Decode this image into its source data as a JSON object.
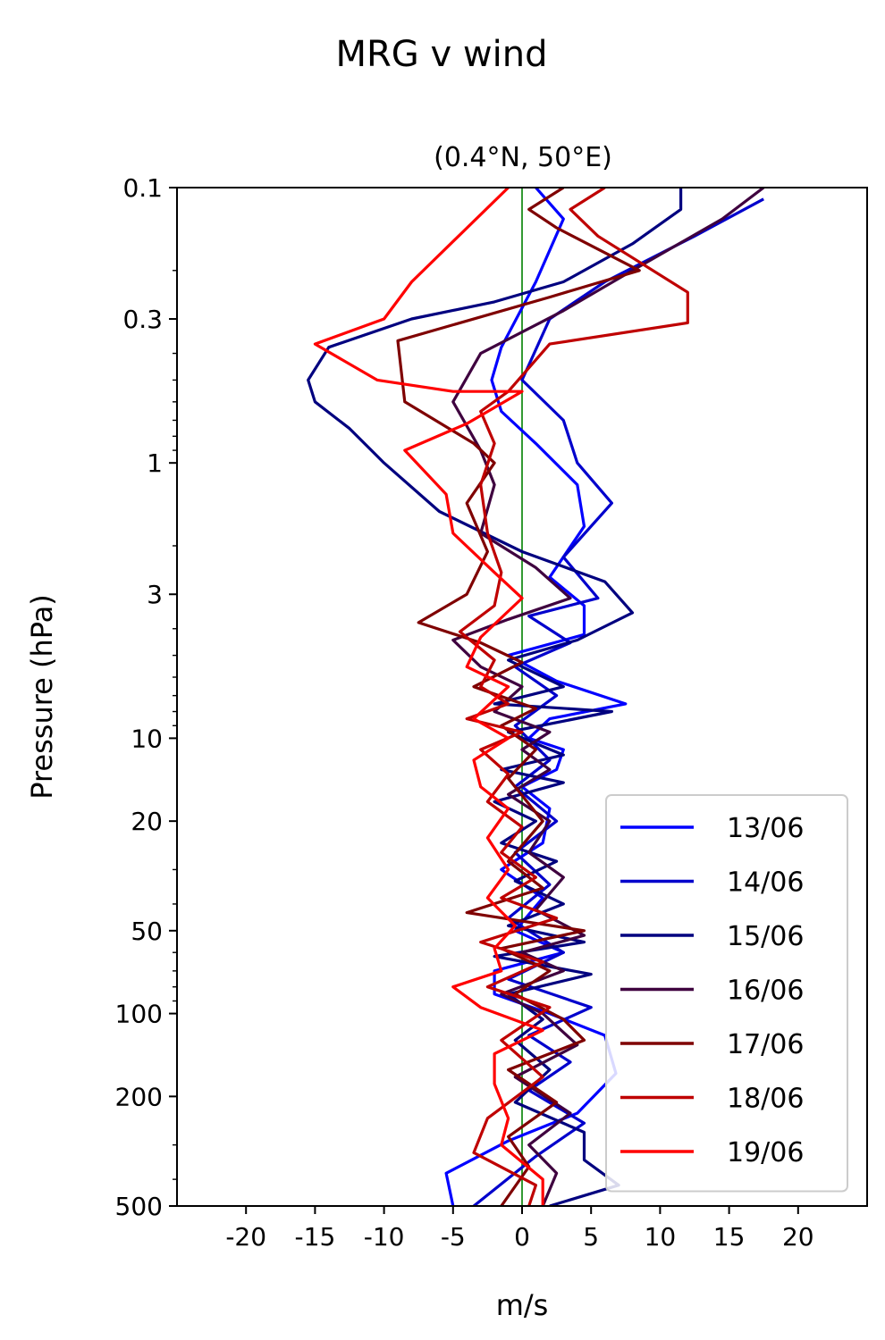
{
  "chart_data": {
    "type": "line",
    "title": "MRG v wind",
    "subtitle": "(0.4°N, 50°E)",
    "xlabel": "m/s",
    "ylabel": "Pressure (hPa)",
    "xlim": [
      -25,
      25
    ],
    "ylim": [
      500,
      0.1
    ],
    "yscale": "log",
    "xticks": [
      -20,
      -15,
      -10,
      -5,
      0,
      5,
      10,
      15,
      20
    ],
    "xtick_labels": [
      "-20",
      "-15",
      "-10",
      "-5",
      "0",
      "5",
      "10",
      "15",
      "20"
    ],
    "yticks": [
      0.1,
      0.3,
      1,
      3,
      10,
      20,
      50,
      100,
      200,
      500
    ],
    "ytick_labels": [
      "0.1",
      "0.3",
      "1",
      "3",
      "10",
      "20",
      "50",
      "100",
      "200",
      "500"
    ],
    "reference_line": {
      "x": 0,
      "color": "#008000"
    },
    "legend_position": "lower right",
    "series": [
      {
        "name": "13/06",
        "color": "#0000ff",
        "points": [
          [
            1,
            0.1
          ],
          [
            3,
            0.13
          ],
          [
            1,
            0.22
          ],
          [
            -1.5,
            0.38
          ],
          [
            -2.2,
            0.5
          ],
          [
            -1.5,
            0.65
          ],
          [
            1,
            0.85
          ],
          [
            4,
            1.2
          ],
          [
            4.5,
            1.7
          ],
          [
            2,
            2.6
          ],
          [
            4.5,
            3.3
          ],
          [
            4.5,
            4.2
          ],
          [
            -1,
            5
          ],
          [
            2.5,
            6.2
          ],
          [
            7.5,
            7.5
          ],
          [
            2,
            8.5
          ],
          [
            0.5,
            10
          ],
          [
            3,
            11
          ],
          [
            2.5,
            13
          ],
          [
            0,
            15
          ],
          [
            2,
            18
          ],
          [
            1.5,
            24
          ],
          [
            -1.5,
            30
          ],
          [
            1.5,
            38
          ],
          [
            -0.5,
            50
          ],
          [
            3,
            60
          ],
          [
            -2,
            70
          ],
          [
            -2,
            85
          ],
          [
            2,
            100
          ],
          [
            6,
            120
          ],
          [
            6.8,
            165
          ],
          [
            4,
            230
          ],
          [
            -1,
            290
          ],
          [
            -5.5,
            380
          ],
          [
            -5,
            500
          ]
        ]
      },
      {
        "name": "14/06",
        "color": "#0000cc",
        "points": [
          [
            17.5,
            0.11
          ],
          [
            12.5,
            0.15
          ],
          [
            6,
            0.22
          ],
          [
            2,
            0.3
          ],
          [
            0,
            0.5
          ],
          [
            3,
            0.7
          ],
          [
            4,
            1.0
          ],
          [
            6.5,
            1.4
          ],
          [
            3,
            2.2
          ],
          [
            5.5,
            3.1
          ],
          [
            0.5,
            3.6
          ],
          [
            3.5,
            4.5
          ],
          [
            -0.5,
            5.5
          ],
          [
            2.5,
            7
          ],
          [
            -0.5,
            9
          ],
          [
            2,
            12
          ],
          [
            -0.5,
            15
          ],
          [
            2.5,
            20
          ],
          [
            -0.5,
            26
          ],
          [
            2,
            34
          ],
          [
            -1,
            45
          ],
          [
            3,
            60
          ],
          [
            -1,
            75
          ],
          [
            5,
            95
          ],
          [
            0.5,
            120
          ],
          [
            3.5,
            150
          ],
          [
            0.5,
            190
          ],
          [
            4.5,
            250
          ],
          [
            1,
            330
          ],
          [
            -3.5,
            500
          ]
        ]
      },
      {
        "name": "15/06",
        "color": "#00007f",
        "points": [
          [
            11.5,
            0.1
          ],
          [
            11.5,
            0.12
          ],
          [
            8,
            0.16
          ],
          [
            3,
            0.22
          ],
          [
            -2,
            0.26
          ],
          [
            -8,
            0.3
          ],
          [
            -14,
            0.38
          ],
          [
            -15.5,
            0.5
          ],
          [
            -15,
            0.6
          ],
          [
            -12.5,
            0.75
          ],
          [
            -10,
            1.0
          ],
          [
            -6,
            1.5
          ],
          [
            0,
            2.1
          ],
          [
            6,
            2.7
          ],
          [
            8,
            3.5
          ],
          [
            4,
            4.4
          ],
          [
            -1,
            5.2
          ],
          [
            3,
            6.5
          ],
          [
            -2,
            7.5
          ],
          [
            6.5,
            8
          ],
          [
            -1,
            9.5
          ],
          [
            3,
            11.5
          ],
          [
            -1.5,
            13
          ],
          [
            3,
            14.5
          ],
          [
            -2,
            17
          ],
          [
            1,
            20
          ],
          [
            -1.5,
            24
          ],
          [
            2.5,
            28
          ],
          [
            -0.5,
            33
          ],
          [
            3,
            40
          ],
          [
            -1,
            48
          ],
          [
            4.5,
            55
          ],
          [
            -2,
            62
          ],
          [
            5,
            72
          ],
          [
            -1,
            85
          ],
          [
            1.5,
            105
          ],
          [
            -0.5,
            125
          ],
          [
            2,
            160
          ],
          [
            -0.5,
            210
          ],
          [
            4.5,
            270
          ],
          [
            4.5,
            340
          ],
          [
            7,
            420
          ],
          [
            2,
            500
          ]
        ]
      },
      {
        "name": "16/06",
        "color": "#3f003f",
        "points": [
          [
            17.5,
            0.1
          ],
          [
            14.5,
            0.13
          ],
          [
            8,
            0.2
          ],
          [
            3,
            0.28
          ],
          [
            -3,
            0.4
          ],
          [
            -5,
            0.6
          ],
          [
            -3,
            0.9
          ],
          [
            -2,
            1.2
          ],
          [
            -3,
            1.8
          ],
          [
            1,
            2.4
          ],
          [
            3.5,
            3.1
          ],
          [
            -1,
            3.7
          ],
          [
            -5,
            4.4
          ],
          [
            -3,
            5.5
          ],
          [
            0,
            6.5
          ],
          [
            -2,
            8
          ],
          [
            2,
            9.5
          ],
          [
            0,
            11
          ],
          [
            2,
            13
          ],
          [
            -1,
            16
          ],
          [
            2,
            20
          ],
          [
            0.5,
            26
          ],
          [
            3,
            32
          ],
          [
            1,
            42
          ],
          [
            4.5,
            52
          ],
          [
            0,
            60
          ],
          [
            3,
            70
          ],
          [
            -1.5,
            85
          ],
          [
            1.5,
            100
          ],
          [
            4,
            130
          ],
          [
            -0.5,
            170
          ],
          [
            3.5,
            230
          ],
          [
            0.5,
            300
          ],
          [
            2.5,
            380
          ],
          [
            1.5,
            500
          ]
        ]
      },
      {
        "name": "17/06",
        "color": "#7f0000",
        "points": [
          [
            3,
            0.1
          ],
          [
            0.5,
            0.12
          ],
          [
            2.5,
            0.14
          ],
          [
            8.5,
            0.2
          ],
          [
            2,
            0.25
          ],
          [
            -9,
            0.36
          ],
          [
            -8.5,
            0.6
          ],
          [
            -3.5,
            0.85
          ],
          [
            -2,
            1.0
          ],
          [
            -4,
            1.4
          ],
          [
            -2.5,
            2.1
          ],
          [
            -4,
            3.0
          ],
          [
            -7.5,
            3.8
          ],
          [
            -3,
            4.5
          ],
          [
            0,
            5.3
          ],
          [
            -3.5,
            6.5
          ],
          [
            1,
            7.8
          ],
          [
            -1.5,
            9
          ],
          [
            1,
            11
          ],
          [
            -1,
            14
          ],
          [
            1.5,
            20
          ],
          [
            -1,
            28
          ],
          [
            1.5,
            35
          ],
          [
            -4,
            43
          ],
          [
            4.5,
            50
          ],
          [
            -1.5,
            58
          ],
          [
            2,
            70
          ],
          [
            -0.5,
            85
          ],
          [
            3,
            105
          ],
          [
            4.5,
            125
          ],
          [
            -1,
            160
          ],
          [
            2.5,
            210
          ],
          [
            -1,
            280
          ],
          [
            0.5,
            360
          ],
          [
            -1.5,
            500
          ]
        ]
      },
      {
        "name": "18/06",
        "color": "#bf0000",
        "points": [
          [
            6,
            0.1
          ],
          [
            3.5,
            0.12
          ],
          [
            5.5,
            0.15
          ],
          [
            12,
            0.24
          ],
          [
            12,
            0.31
          ],
          [
            2,
            0.37
          ],
          [
            -1,
            0.55
          ],
          [
            -3,
            0.65
          ],
          [
            -2,
            0.85
          ],
          [
            -3,
            1.2
          ],
          [
            -2.5,
            1.8
          ],
          [
            -1.5,
            2.5
          ],
          [
            -2,
            3.3
          ],
          [
            -4.5,
            4.1
          ],
          [
            -2,
            5.2
          ],
          [
            -3,
            6.5
          ],
          [
            -1,
            7.5
          ],
          [
            -4,
            8.5
          ],
          [
            0,
            9.5
          ],
          [
            -3,
            11
          ],
          [
            -1,
            13.5
          ],
          [
            -2.5,
            17
          ],
          [
            0,
            21
          ],
          [
            -1.5,
            26
          ],
          [
            1,
            32
          ],
          [
            -1.5,
            38
          ],
          [
            2.5,
            45
          ],
          [
            -3,
            55
          ],
          [
            1.5,
            65
          ],
          [
            -2.5,
            80
          ],
          [
            2,
            95
          ],
          [
            -1.5,
            125
          ],
          [
            1.5,
            170
          ],
          [
            -2.5,
            240
          ],
          [
            -3.5,
            320
          ],
          [
            1,
            420
          ],
          [
            0.5,
            500
          ]
        ]
      },
      {
        "name": "19/06",
        "color": "#ff0000",
        "points": [
          [
            -1,
            0.1
          ],
          [
            -8,
            0.22
          ],
          [
            -10,
            0.3
          ],
          [
            -15,
            0.37
          ],
          [
            -10.5,
            0.5
          ],
          [
            -5,
            0.55
          ],
          [
            0,
            0.55
          ],
          [
            -4,
            0.72
          ],
          [
            -8.5,
            0.9
          ],
          [
            -5.5,
            1.3
          ],
          [
            -5,
            1.8
          ],
          [
            -2,
            2.5
          ],
          [
            0,
            3.1
          ],
          [
            -3,
            4.3
          ],
          [
            -4,
            5.5
          ],
          [
            -1,
            6.5
          ],
          [
            -3.5,
            8.5
          ],
          [
            -1,
            10
          ],
          [
            -3.5,
            12
          ],
          [
            -3,
            15
          ],
          [
            -1,
            18
          ],
          [
            -2.5,
            23
          ],
          [
            -1,
            30
          ],
          [
            -2.5,
            38
          ],
          [
            -0.5,
            48
          ],
          [
            -2,
            58
          ],
          [
            -1.5,
            70
          ],
          [
            -5,
            80
          ],
          [
            -3,
            95
          ],
          [
            1.5,
            115
          ],
          [
            -2,
            140
          ],
          [
            -2,
            180
          ],
          [
            -1,
            240
          ],
          [
            -1.5,
            300
          ],
          [
            1.5,
            400
          ],
          [
            1.5,
            500
          ]
        ]
      }
    ]
  }
}
